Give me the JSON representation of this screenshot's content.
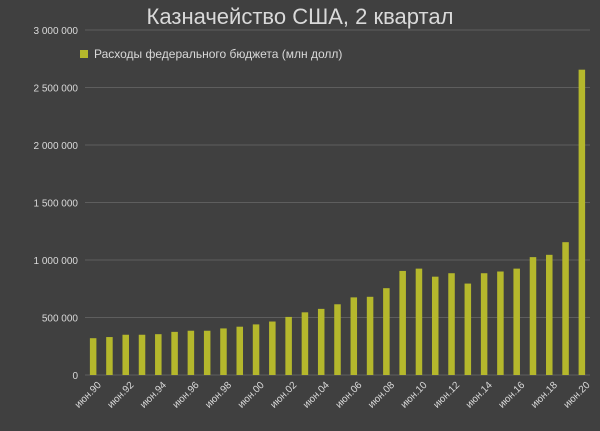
{
  "chart_data": {
    "type": "bar",
    "title": "Казначейство США, 2 квартал",
    "xlabel": "",
    "ylabel": "",
    "ylim": [
      0,
      3000000
    ],
    "y_ticks": [
      0,
      500000,
      1000000,
      1500000,
      2000000,
      2500000,
      3000000
    ],
    "y_tick_labels": [
      "0",
      "500 000",
      "1 000 000",
      "1 500 000",
      "2 000 000",
      "2 500 000",
      "3 000 000"
    ],
    "grid": true,
    "legend_position": "top-left",
    "categories": [
      "июн.90",
      "июн.91",
      "июн.92",
      "июн.93",
      "июн.94",
      "июн.95",
      "июн.96",
      "июн.97",
      "июн.98",
      "июн.99",
      "июн.00",
      "июн.01",
      "июн.02",
      "июн.03",
      "июн.04",
      "июн.05",
      "июн.06",
      "июн.07",
      "июн.08",
      "июн.09",
      "июн.10",
      "июн.11",
      "июн.12",
      "июн.13",
      "июн.14",
      "июн.15",
      "июн.16",
      "июн.17",
      "июн.18",
      "июн.19",
      "июн.20"
    ],
    "x_tick_labels": [
      "июн.90",
      "",
      "июн.92",
      "",
      "июн.94",
      "",
      "июн.96",
      "",
      "июн.98",
      "",
      "июн.00",
      "",
      "июн.02",
      "",
      "июн.04",
      "",
      "июн.06",
      "",
      "июн.08",
      "",
      "июн.10",
      "",
      "июн.12",
      "",
      "июн.14",
      "",
      "июн.16",
      "",
      "июн.18",
      "",
      "июн.20"
    ],
    "series": [
      {
        "name": "Расходы федерального бюджета (млн долл)",
        "color": "#b5b82c",
        "values": [
          320000,
          330000,
          350000,
          350000,
          355000,
          375000,
          385000,
          385000,
          405000,
          420000,
          440000,
          465000,
          505000,
          545000,
          575000,
          615000,
          675000,
          680000,
          755000,
          905000,
          925000,
          855000,
          885000,
          795000,
          885000,
          900000,
          925000,
          1025000,
          1045000,
          1155000,
          2655000
        ]
      }
    ]
  }
}
